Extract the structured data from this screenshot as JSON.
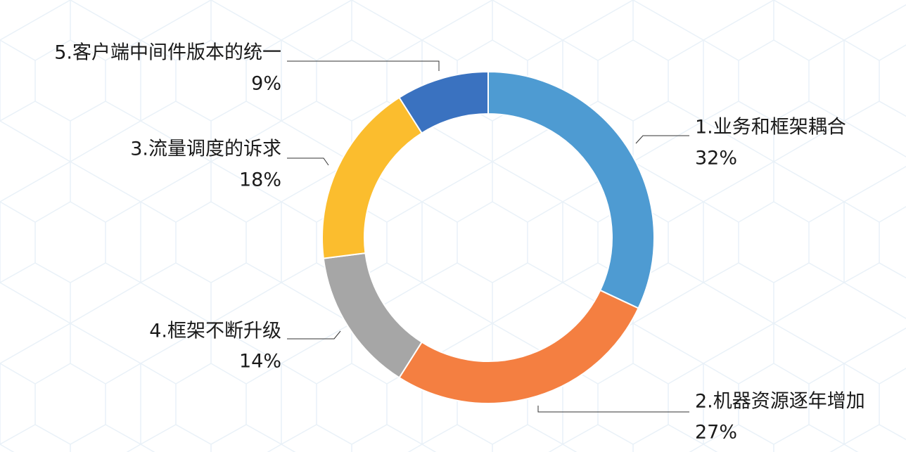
{
  "chart_data": {
    "type": "pie",
    "style": "donut",
    "slices": [
      {
        "label": "1.业务和框架耦合",
        "pct_label": "32%",
        "value": 32,
        "color": "#4e9bd2"
      },
      {
        "label": "2.机器资源逐年增加",
        "pct_label": "27%",
        "value": 27,
        "color": "#f47f41"
      },
      {
        "label": "4.框架不断升级",
        "pct_label": "14%",
        "value": 14,
        "color": "#a6a6a6"
      },
      {
        "label": "3.流量调度的诉求",
        "pct_label": "18%",
        "value": 18,
        "color": "#fbbd2e"
      },
      {
        "label": "5.客户端中间件版本的统一",
        "pct_label": "9%",
        "value": 9,
        "color": "#3a72c0"
      }
    ],
    "legend": "none",
    "background_pattern_color": "#e9f1f8"
  }
}
